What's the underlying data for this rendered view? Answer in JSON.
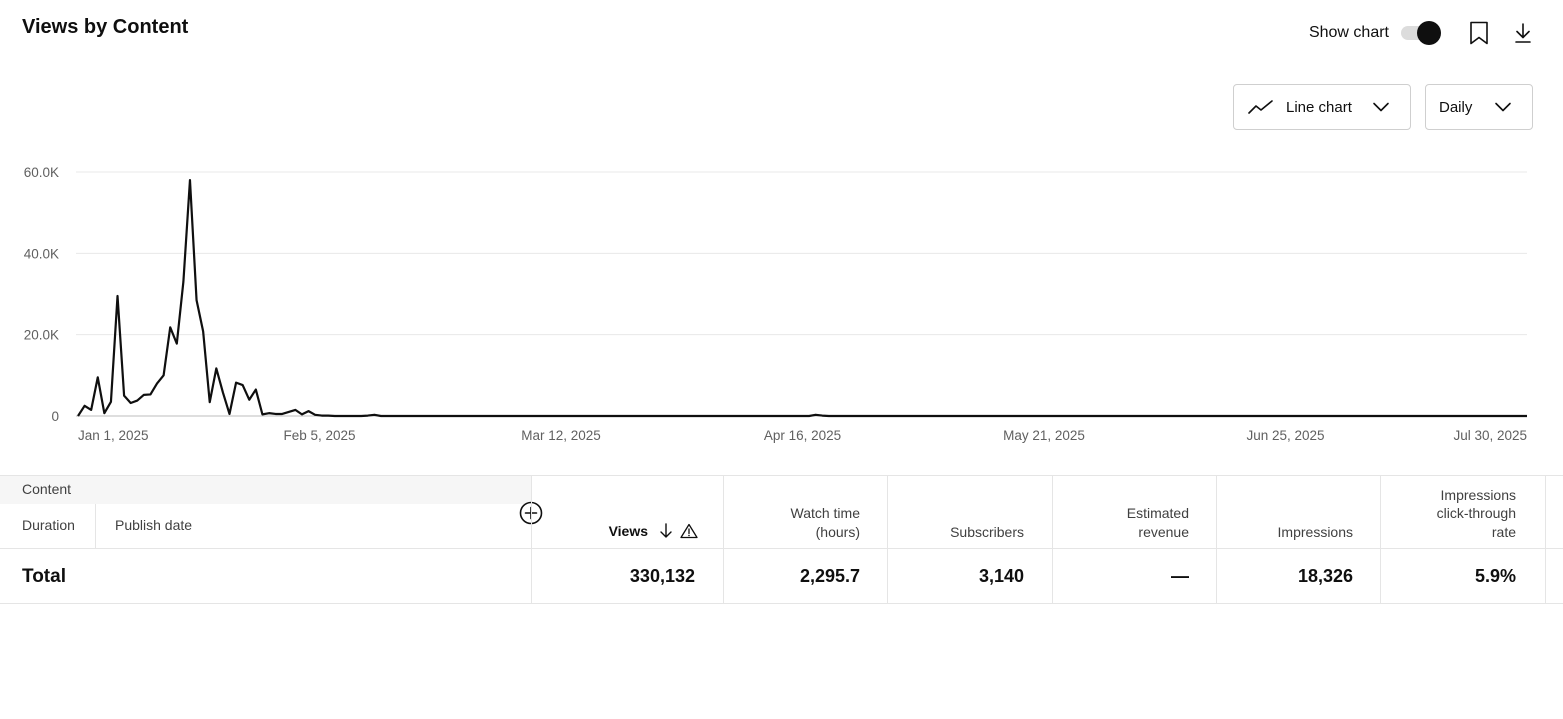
{
  "header": {
    "title": "Views by Content",
    "show_chart_label": "Show chart",
    "show_chart_on": true
  },
  "controls": {
    "chart_type": "Line chart",
    "interval": "Daily"
  },
  "icons": {
    "bookmark": "bookmark-icon",
    "download": "download-icon",
    "chart_type": "line-chart-icon",
    "chevron": "chevron-down-icon",
    "add_column": "add-circle-icon",
    "sort": "arrow-down-icon",
    "warning": "warning-icon"
  },
  "chart_data": {
    "type": "line",
    "title": "",
    "xlabel": "",
    "ylabel": "",
    "ylim": [
      0,
      60000
    ],
    "yticks": [
      0,
      20000,
      40000,
      60000
    ],
    "ytick_labels": [
      "0",
      "20.0K",
      "40.0K",
      "60.0K"
    ],
    "x_start": "Jan 1, 2025",
    "x_end": "Jul 30, 2025",
    "xtick_labels": [
      "Jan 1, 2025",
      "Feb 5, 2025",
      "Mar 12, 2025",
      "Apr 16, 2025",
      "May 21, 2025",
      "Jun 25, 2025",
      "Jul 30, 2025"
    ],
    "grid": true,
    "line_color": "#0f0f0f",
    "series": [
      {
        "values": [
          0,
          2500,
          1500,
          9500,
          700,
          3500,
          29500,
          5000,
          3200,
          3800,
          5200,
          5300,
          8000,
          10000,
          21800,
          17800,
          33000,
          58000,
          28500,
          20800,
          3400,
          11700,
          5800,
          500,
          8200,
          7600,
          4000,
          6500,
          400,
          700,
          500,
          500,
          1000,
          1500,
          400,
          1200,
          300,
          100,
          100,
          0,
          0,
          0,
          0,
          0,
          100,
          300,
          0,
          0,
          0,
          0,
          0,
          0,
          0,
          0,
          0,
          0,
          0,
          0,
          0,
          0,
          0,
          0,
          0,
          0,
          0,
          0,
          0,
          0,
          0,
          0,
          0,
          0,
          0,
          0,
          0,
          0,
          0,
          0,
          0,
          0,
          0,
          0,
          0,
          0,
          0,
          0,
          0,
          0,
          0,
          0,
          0,
          0,
          0,
          0,
          0,
          0,
          0,
          0,
          0,
          0,
          0,
          0,
          0,
          0,
          0,
          0,
          0,
          0,
          0,
          0,
          0,
          0,
          300,
          100,
          0,
          0,
          0,
          0,
          0,
          0,
          0,
          0,
          0,
          0,
          0,
          0,
          0,
          0,
          0,
          0,
          0,
          0,
          0,
          0,
          0,
          0,
          0,
          0,
          0,
          0,
          0,
          0,
          0,
          0,
          0,
          0,
          0,
          0,
          0,
          0,
          0,
          0,
          0,
          0,
          0,
          0,
          0,
          0,
          0,
          0,
          0,
          0,
          0,
          0,
          0,
          0,
          0,
          0,
          0,
          0,
          0,
          0,
          0,
          0,
          0,
          0,
          0,
          0,
          0,
          0,
          0,
          0,
          0,
          0,
          0,
          0,
          0,
          0,
          0,
          0,
          0,
          0,
          0,
          0,
          0,
          0,
          0,
          0,
          0,
          0,
          0,
          0,
          0,
          0,
          0,
          0,
          0,
          0,
          0,
          0,
          0,
          0,
          0,
          0,
          0,
          0,
          0,
          0,
          0,
          0,
          0
        ]
      }
    ]
  },
  "table": {
    "content_header": "Content",
    "duration_header": "Duration",
    "publish_header": "Publish date",
    "columns": [
      {
        "key": "views",
        "label": "Views"
      },
      {
        "key": "watch",
        "label_lines": [
          "Watch time",
          "(hours)"
        ]
      },
      {
        "key": "subs",
        "label": "Subscribers"
      },
      {
        "key": "rev",
        "label_lines": [
          "Estimated",
          "revenue"
        ]
      },
      {
        "key": "imp",
        "label": "Impressions"
      },
      {
        "key": "ctr",
        "label_lines": [
          "Impressions",
          "click-through",
          "rate"
        ]
      }
    ],
    "total": {
      "label": "Total",
      "views": "330,132",
      "watch": "2,295.7",
      "subs": "3,140",
      "rev": "—",
      "imp": "18,326",
      "ctr": "5.9%"
    }
  }
}
